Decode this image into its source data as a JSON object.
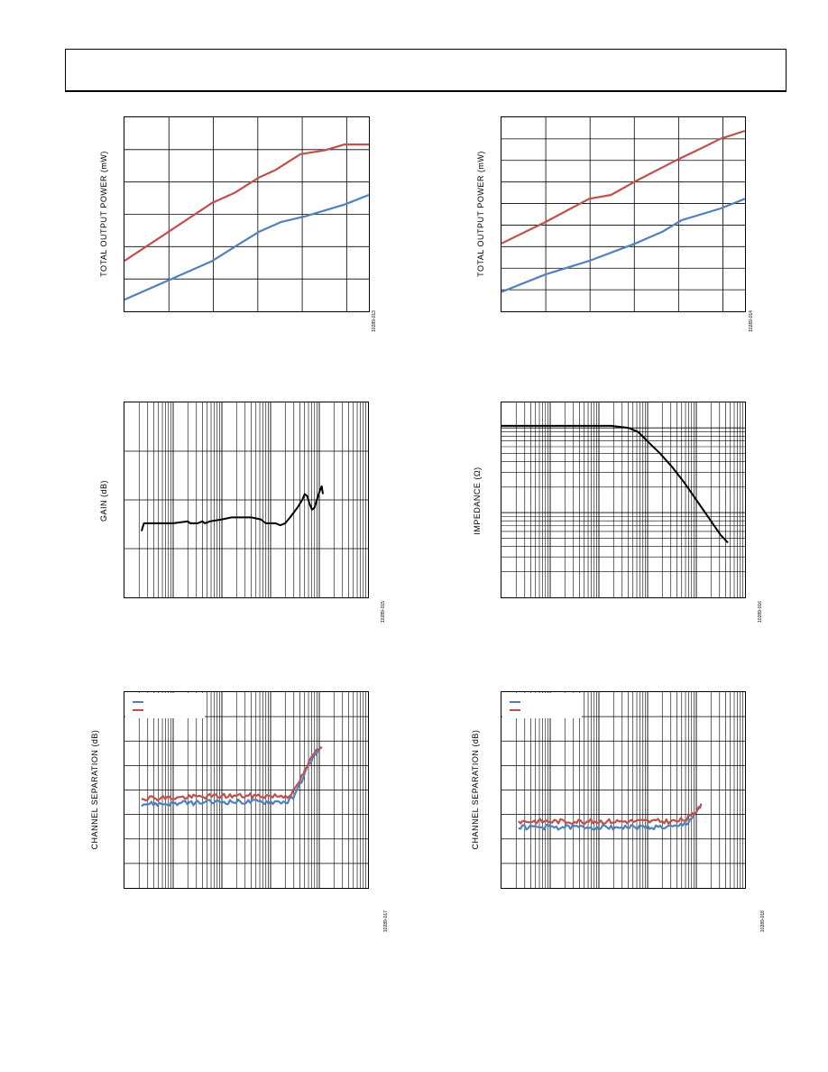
{
  "colors": {
    "red": "#c0504d",
    "blue": "#4f81bd",
    "black": "#000000",
    "grid": "#000000"
  },
  "charts": [
    {
      "id": "c1",
      "type": "line",
      "ylabel": "TOTAL OUTPUT POWER (mW)",
      "figure_id": "10289-013",
      "grid": {
        "xdiv": 5.5,
        "ydiv": 6,
        "log": false
      },
      "x_range": [
        0,
        1
      ],
      "y_range": [
        0,
        1
      ],
      "series": [
        {
          "color": "red",
          "points": [
            [
              0.0,
              0.26
            ],
            [
              0.18,
              0.41
            ],
            [
              0.36,
              0.56
            ],
            [
              0.45,
              0.61
            ],
            [
              0.55,
              0.69
            ],
            [
              0.62,
              0.73
            ],
            [
              0.72,
              0.81
            ],
            [
              0.82,
              0.83
            ],
            [
              0.9,
              0.86
            ],
            [
              1.0,
              0.86
            ]
          ]
        },
        {
          "color": "blue",
          "points": [
            [
              0.0,
              0.06
            ],
            [
              0.18,
              0.16
            ],
            [
              0.36,
              0.26
            ],
            [
              0.46,
              0.34
            ],
            [
              0.55,
              0.41
            ],
            [
              0.64,
              0.46
            ],
            [
              0.74,
              0.49
            ],
            [
              0.82,
              0.52
            ],
            [
              0.9,
              0.55
            ],
            [
              1.0,
              0.6
            ]
          ]
        }
      ]
    },
    {
      "id": "c2",
      "type": "line",
      "ylabel": "TOTAL OUTPUT POWER (mW)",
      "figure_id": "10289-014",
      "grid": {
        "xdiv": 5.5,
        "ydiv": 9,
        "log": false
      },
      "x_range": [
        0,
        1
      ],
      "y_range": [
        0,
        1
      ],
      "series": [
        {
          "color": "red",
          "points": [
            [
              0.0,
              0.35
            ],
            [
              0.18,
              0.46
            ],
            [
              0.36,
              0.58
            ],
            [
              0.45,
              0.6
            ],
            [
              0.55,
              0.67
            ],
            [
              0.72,
              0.78
            ],
            [
              0.82,
              0.84
            ],
            [
              0.9,
              0.89
            ],
            [
              1.0,
              0.93
            ]
          ]
        },
        {
          "color": "blue",
          "points": [
            [
              0.0,
              0.1
            ],
            [
              0.18,
              0.19
            ],
            [
              0.36,
              0.26
            ],
            [
              0.55,
              0.35
            ],
            [
              0.66,
              0.41
            ],
            [
              0.74,
              0.47
            ],
            [
              0.82,
              0.5
            ],
            [
              0.9,
              0.53
            ],
            [
              1.0,
              0.58
            ]
          ]
        }
      ]
    },
    {
      "id": "c3",
      "type": "line",
      "ylabel": "GAIN (dB)",
      "figure_id": "10289-015",
      "grid": {
        "xlog": true,
        "decades": 5,
        "ydiv": 4,
        "log": true
      },
      "x_range": [
        0,
        1
      ],
      "y_range": [
        0,
        1
      ],
      "series": [
        {
          "color": "black",
          "points": [
            [
              0.07,
              0.34
            ],
            [
              0.08,
              0.38
            ],
            [
              0.14,
              0.38
            ],
            [
              0.2,
              0.38
            ],
            [
              0.26,
              0.39
            ],
            [
              0.27,
              0.38
            ],
            [
              0.3,
              0.38
            ],
            [
              0.32,
              0.39
            ],
            [
              0.33,
              0.38
            ],
            [
              0.35,
              0.39
            ],
            [
              0.4,
              0.4
            ],
            [
              0.44,
              0.41
            ],
            [
              0.48,
              0.41
            ],
            [
              0.52,
              0.41
            ],
            [
              0.56,
              0.4
            ],
            [
              0.58,
              0.38
            ],
            [
              0.62,
              0.38
            ],
            [
              0.64,
              0.37
            ],
            [
              0.66,
              0.38
            ],
            [
              0.68,
              0.41
            ],
            [
              0.71,
              0.46
            ],
            [
              0.73,
              0.5
            ],
            [
              0.74,
              0.53
            ],
            [
              0.75,
              0.52
            ],
            [
              0.76,
              0.48
            ],
            [
              0.77,
              0.45
            ],
            [
              0.78,
              0.46
            ],
            [
              0.8,
              0.54
            ],
            [
              0.81,
              0.57
            ],
            [
              0.815,
              0.53
            ]
          ]
        }
      ]
    },
    {
      "id": "c4",
      "type": "line",
      "ylabel": "IMPEDANCE (Ω)",
      "figure_id": "10289-016",
      "grid": {
        "xlog": true,
        "decades": 5,
        "ydecades": 2.3,
        "log": true
      },
      "x_range": [
        0,
        1
      ],
      "y_range": [
        0,
        1
      ],
      "series": [
        {
          "color": "black",
          "points": [
            [
              0.0,
              0.88
            ],
            [
              0.25,
              0.88
            ],
            [
              0.45,
              0.88
            ],
            [
              0.52,
              0.87
            ],
            [
              0.56,
              0.85
            ],
            [
              0.6,
              0.8
            ],
            [
              0.65,
              0.74
            ],
            [
              0.7,
              0.67
            ],
            [
              0.75,
              0.59
            ],
            [
              0.8,
              0.5
            ],
            [
              0.85,
              0.41
            ],
            [
              0.9,
              0.32
            ],
            [
              0.93,
              0.28
            ]
          ]
        }
      ]
    },
    {
      "id": "c5",
      "type": "line",
      "ylabel": "CHANNEL SEPARATION (dB)",
      "figure_id": "10289-017",
      "grid": {
        "xlog": true,
        "decades": 5,
        "ydiv": 8,
        "log": true
      },
      "x_range": [
        0,
        1
      ],
      "y_range": [
        0,
        1
      ],
      "legend": true,
      "series": [
        {
          "color": "blue",
          "noisy": true,
          "points": [
            [
              0.07,
              0.43
            ],
            [
              0.2,
              0.43
            ],
            [
              0.4,
              0.44
            ],
            [
              0.6,
              0.44
            ],
            [
              0.67,
              0.44
            ],
            [
              0.7,
              0.47
            ],
            [
              0.72,
              0.53
            ],
            [
              0.75,
              0.61
            ],
            [
              0.78,
              0.68
            ],
            [
              0.81,
              0.72
            ]
          ]
        },
        {
          "color": "red",
          "noisy": true,
          "points": [
            [
              0.07,
              0.46
            ],
            [
              0.2,
              0.46
            ],
            [
              0.4,
              0.47
            ],
            [
              0.6,
              0.47
            ],
            [
              0.67,
              0.47
            ],
            [
              0.7,
              0.5
            ],
            [
              0.72,
              0.55
            ],
            [
              0.75,
              0.62
            ],
            [
              0.78,
              0.69
            ],
            [
              0.81,
              0.72
            ]
          ]
        }
      ]
    },
    {
      "id": "c6",
      "type": "line",
      "ylabel": "CHANNEL SEPARATION (dB)",
      "figure_id": "10289-018",
      "grid": {
        "xlog": true,
        "decades": 5,
        "ydiv": 8,
        "log": true
      },
      "x_range": [
        0,
        1
      ],
      "y_range": [
        0,
        1
      ],
      "legend": true,
      "series": [
        {
          "color": "blue",
          "noisy": true,
          "points": [
            [
              0.07,
              0.31
            ],
            [
              0.2,
              0.31
            ],
            [
              0.4,
              0.31
            ],
            [
              0.6,
              0.31
            ],
            [
              0.72,
              0.31
            ],
            [
              0.76,
              0.33
            ],
            [
              0.79,
              0.37
            ],
            [
              0.81,
              0.41
            ],
            [
              0.82,
              0.43
            ]
          ]
        },
        {
          "color": "red",
          "noisy": true,
          "points": [
            [
              0.07,
              0.34
            ],
            [
              0.2,
              0.34
            ],
            [
              0.4,
              0.34
            ],
            [
              0.6,
              0.34
            ],
            [
              0.72,
              0.34
            ],
            [
              0.76,
              0.35
            ],
            [
              0.79,
              0.38
            ],
            [
              0.81,
              0.41
            ],
            [
              0.82,
              0.43
            ]
          ]
        }
      ]
    }
  ]
}
